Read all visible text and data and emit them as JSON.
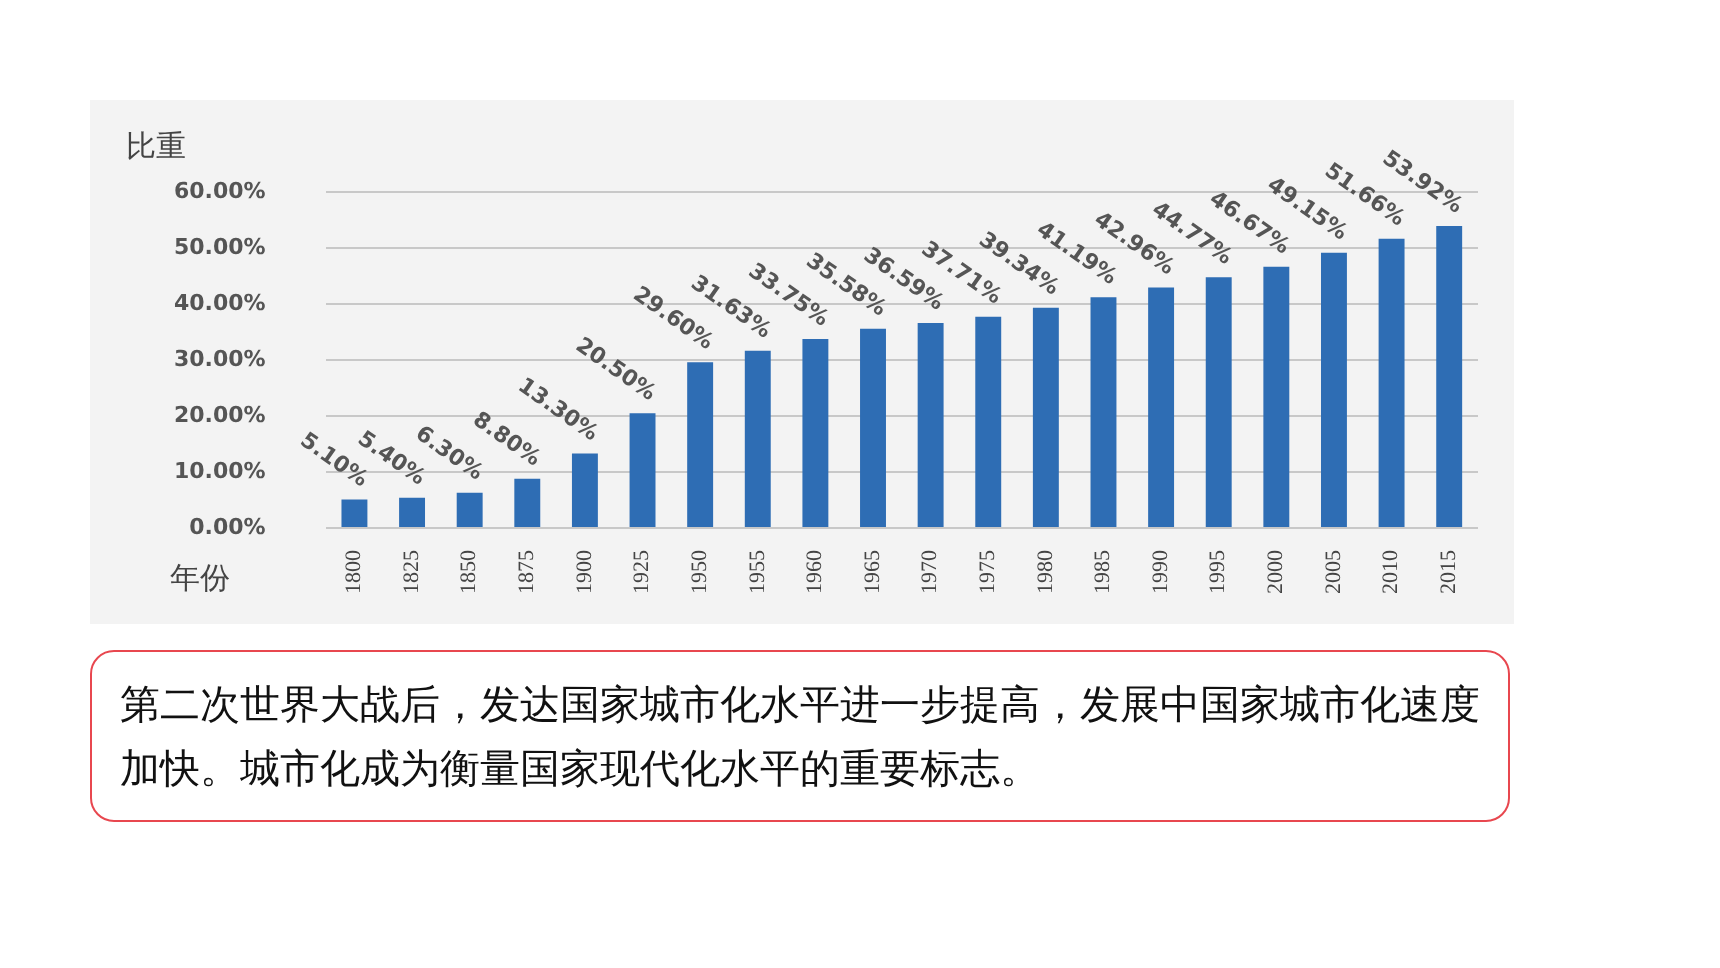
{
  "chart_data": {
    "type": "bar",
    "xlabel": "年份",
    "ylabel": "比重",
    "categories": [
      "1800",
      "1825",
      "1850",
      "1875",
      "1900",
      "1925",
      "1950",
      "1955",
      "1960",
      "1965",
      "1970",
      "1975",
      "1980",
      "1985",
      "1990",
      "1995",
      "2000",
      "2005",
      "2010",
      "2015"
    ],
    "values": [
      5.1,
      5.4,
      6.3,
      8.8,
      13.3,
      20.5,
      29.6,
      31.63,
      33.75,
      35.58,
      36.59,
      37.71,
      39.34,
      41.19,
      42.96,
      44.77,
      46.67,
      49.15,
      51.66,
      53.92
    ],
    "value_labels": [
      "5.10%",
      "5.40%",
      "6.30%",
      "8.80%",
      "13.30%",
      "20.50%",
      "29.60%",
      "31.63%",
      "33.75%",
      "35.58%",
      "36.59%",
      "37.71%",
      "39.34%",
      "41.19%",
      "42.96%",
      "44.77%",
      "46.67%",
      "49.15%",
      "51.66%",
      "53.92%"
    ],
    "color": "#2e6db4",
    "ylim": [
      0,
      60
    ],
    "yticks": [
      {
        "value": 0,
        "label": "0.00%"
      },
      {
        "value": 10,
        "label": "10.00%"
      },
      {
        "value": 20,
        "label": "20.00%"
      },
      {
        "value": 30,
        "label": "30.00%"
      },
      {
        "value": 40,
        "label": "40.00%"
      },
      {
        "value": 50,
        "label": "50.00%"
      },
      {
        "value": 60,
        "label": "60.00%"
      }
    ],
    "grid": "y",
    "legend": false,
    "annotations": [
      "第二次世界大战后，发达国家城市化水平进一步提高，发展中国家城市化速度加快。城市化成为衡量国家现代化水平的重要标志。"
    ]
  }
}
